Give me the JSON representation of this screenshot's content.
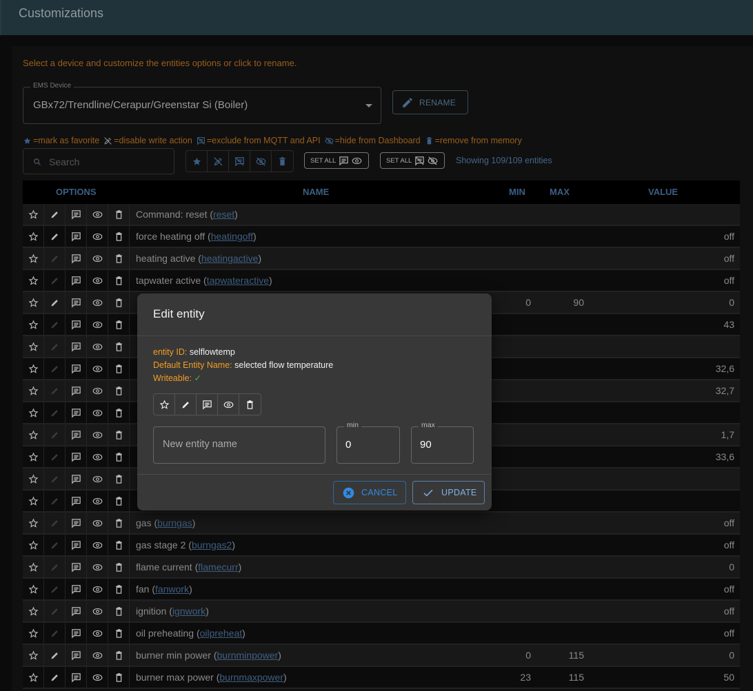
{
  "header": {
    "title": "Customizations"
  },
  "intro": "Select a device and customize the entities options or click to rename.",
  "device_select": {
    "label": "EMS Device",
    "value": "GBx72/Trendline/Cerapur/Greenstar Si (Boiler)"
  },
  "rename_label": "RENAME",
  "legend": {
    "favorite": "=mark as favorite",
    "readonly": "=disable write action",
    "exclude": "=exclude from MQTT and API",
    "hide": "=hide from Dashboard",
    "remove": "=remove from memory"
  },
  "search": {
    "placeholder": "Search"
  },
  "set_all_1": "SET ALL",
  "set_all_2": "SET ALL",
  "showing": "Showing 109/109 entities",
  "table": {
    "headers": {
      "options": "OPTIONS",
      "name": "NAME",
      "min": "MIN",
      "max": "MAX",
      "value": "VALUE"
    },
    "rows": [
      {
        "name": "Command: reset",
        "id": "reset",
        "min": "",
        "max": "",
        "value": "",
        "writeable": true
      },
      {
        "name": "force heating off",
        "id": "heatingoff",
        "min": "",
        "max": "",
        "value": "off",
        "writeable": true
      },
      {
        "name": "heating active",
        "id": "heatingactive",
        "min": "",
        "max": "",
        "value": "off",
        "writeable": false
      },
      {
        "name": "tapwater active",
        "id": "tapwateractive",
        "min": "",
        "max": "",
        "value": "off",
        "writeable": false
      },
      {
        "name": "",
        "id": "",
        "min": "0",
        "max": "90",
        "value": "0",
        "writeable": true
      },
      {
        "name": "",
        "id": "",
        "min": "",
        "max": "",
        "value": "43",
        "writeable": false
      },
      {
        "name": "",
        "id": "",
        "min": "",
        "max": "",
        "value": "",
        "writeable": false
      },
      {
        "name": "",
        "id": "",
        "min": "",
        "max": "",
        "value": "32,6",
        "writeable": false
      },
      {
        "name": "",
        "id": "",
        "min": "",
        "max": "",
        "value": "32,7",
        "writeable": false
      },
      {
        "name": "",
        "id": "",
        "min": "",
        "max": "",
        "value": "",
        "writeable": false
      },
      {
        "name": "",
        "id": "",
        "min": "",
        "max": "",
        "value": "1,7",
        "writeable": false
      },
      {
        "name": "",
        "id": "",
        "min": "",
        "max": "",
        "value": "33,6",
        "writeable": false
      },
      {
        "name": "",
        "id": "",
        "min": "",
        "max": "",
        "value": "",
        "writeable": false
      },
      {
        "name": "",
        "id": "",
        "min": "",
        "max": "",
        "value": "",
        "writeable": false
      },
      {
        "name": "gas",
        "id": "burngas",
        "min": "",
        "max": "",
        "value": "off",
        "writeable": false
      },
      {
        "name": "gas stage 2",
        "id": "burngas2",
        "min": "",
        "max": "",
        "value": "off",
        "writeable": false
      },
      {
        "name": "flame current",
        "id": "flamecurr",
        "min": "",
        "max": "",
        "value": "0",
        "writeable": false
      },
      {
        "name": "fan",
        "id": "fanwork",
        "min": "",
        "max": "",
        "value": "off",
        "writeable": false
      },
      {
        "name": "ignition",
        "id": "ignwork",
        "min": "",
        "max": "",
        "value": "off",
        "writeable": false
      },
      {
        "name": "oil preheating",
        "id": "oilpreheat",
        "min": "",
        "max": "",
        "value": "off",
        "writeable": false
      },
      {
        "name": "burner min power",
        "id": "burnminpower",
        "min": "0",
        "max": "115",
        "value": "0",
        "writeable": true
      },
      {
        "name": "burner max power",
        "id": "burnmaxpower",
        "min": "23",
        "max": "115",
        "value": "50",
        "writeable": true
      }
    ]
  },
  "dialog": {
    "title": "Edit entity",
    "entity_id_label": "entity ID:",
    "entity_id": "selflowtemp",
    "default_name_label": "Default Entity Name:",
    "default_name": "selected flow temperature",
    "writeable_label": "Writeable:",
    "writeable_mark": "✓",
    "name_placeholder": "New entity name",
    "min_label": "min",
    "min_value": "0",
    "max_label": "max",
    "max_value": "90",
    "cancel": "CANCEL",
    "update": "UPDATE"
  },
  "colors": {
    "accent": "#2e8be6",
    "warning": "#f29d22",
    "header": "#20323a",
    "link": "#3f5f82",
    "success": "#4caf50"
  }
}
